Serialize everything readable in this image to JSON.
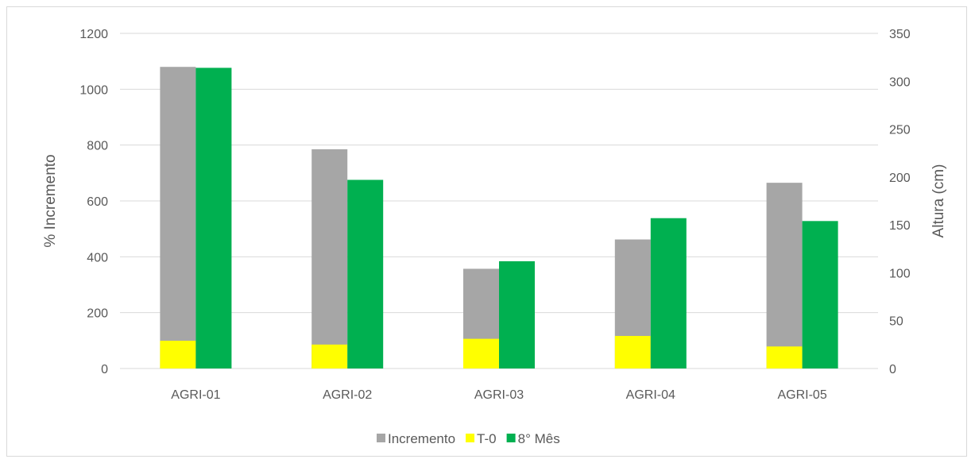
{
  "chart_data": {
    "type": "bar",
    "categories": [
      "AGRI-01",
      "AGRI-02",
      "AGRI-03",
      "AGRI-04",
      "AGRI-05"
    ],
    "series": [
      {
        "name": "Incremento",
        "axis": "left",
        "color": "#a6a6a6",
        "values": [
          1080,
          785,
          357,
          462,
          665
        ]
      },
      {
        "name": "T-0",
        "axis": "right",
        "color": "#ffff00",
        "values": [
          29,
          25,
          31,
          34,
          23
        ]
      },
      {
        "name": "8° Mês",
        "axis": "right",
        "color": "#00b050",
        "values": [
          314,
          197,
          112,
          157,
          154
        ]
      }
    ],
    "y_left": {
      "label": "% Incremento",
      "min": 0,
      "max": 1200,
      "ticks": [
        "0",
        "200",
        "400",
        "600",
        "800",
        "1000",
        "1200"
      ]
    },
    "y_right": {
      "label": "Altura (cm)",
      "min": 0,
      "max": 350,
      "ticks": [
        "0",
        "50",
        "100",
        "150",
        "200",
        "250",
        "300",
        "350"
      ]
    },
    "grid": true,
    "legend_position": "bottom"
  }
}
